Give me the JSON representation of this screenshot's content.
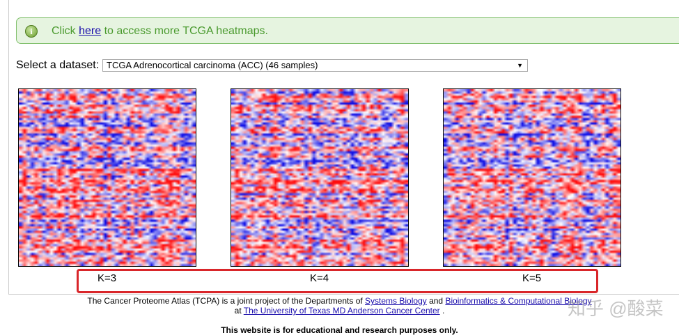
{
  "notice": {
    "prefix": "Click ",
    "link": "here",
    "suffix": " to access more TCGA heatmaps.",
    "icon": "info-icon"
  },
  "dataset": {
    "label": "Select a dataset:",
    "selected": "TCGA Adrenocortical carcinoma (ACC) (46 samples)"
  },
  "heatmaps": [
    {
      "label": "K=3"
    },
    {
      "label": "K=4"
    },
    {
      "label": "K=5"
    }
  ],
  "colors": {
    "high": "#e00000",
    "low": "#1010d0",
    "mid": "#ffffff",
    "highlight_box": "#d9262a"
  },
  "footer": {
    "line1_prefix": "The Cancer Proteome Atlas (TCPA) is a joint project of the Departments of ",
    "link1": "Systems Biology",
    "mid": " and ",
    "link2": "Bioinformatics & Computational Biology",
    "line2_prefix": "at ",
    "link3": "The University of Texas MD Anderson Cancer Center",
    "line2_suffix": " .",
    "disclaimer": "This website is for educational and research purposes only."
  },
  "watermark": "知乎 @酸菜"
}
